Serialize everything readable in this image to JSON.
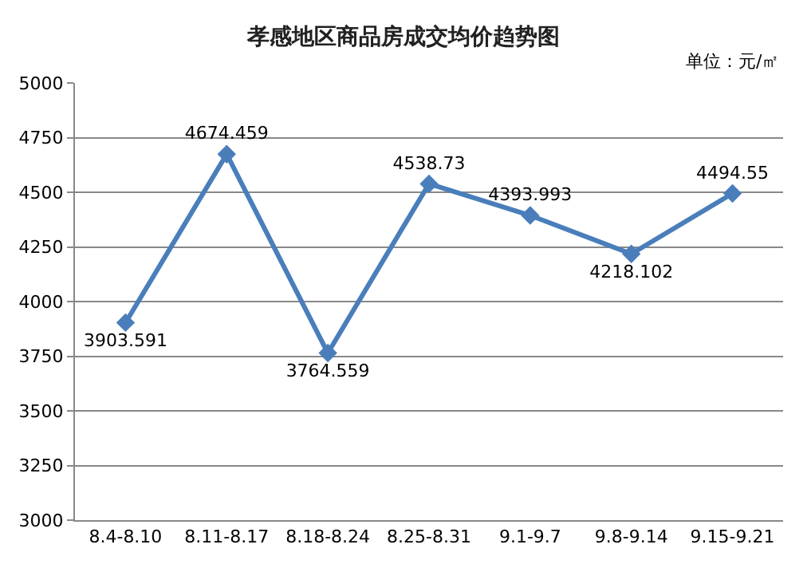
{
  "chart_data": {
    "type": "line",
    "title": "孝感地区商品房成交均价趋势图",
    "categories": [
      "8.4-8.10",
      "8.11-8.17",
      "8.18-8.24",
      "8.25-8.31",
      "9.1-9.7",
      "9.8-9.14",
      "9.15-9.21"
    ],
    "values": [
      3903.591,
      4674.459,
      3764.559,
      4538.73,
      4393.993,
      4218.102,
      4494.55
    ],
    "color": "#4a7ebb",
    "marker": "diamond",
    "line_style": "solid",
    "ylim": [
      3000,
      5000
    ],
    "yticks": [
      3000,
      3250,
      3500,
      3750,
      4000,
      4250,
      4500,
      4750,
      5000
    ],
    "grid": "y",
    "data_labels": true,
    "annotations": [
      "单位：元/㎡"
    ]
  }
}
